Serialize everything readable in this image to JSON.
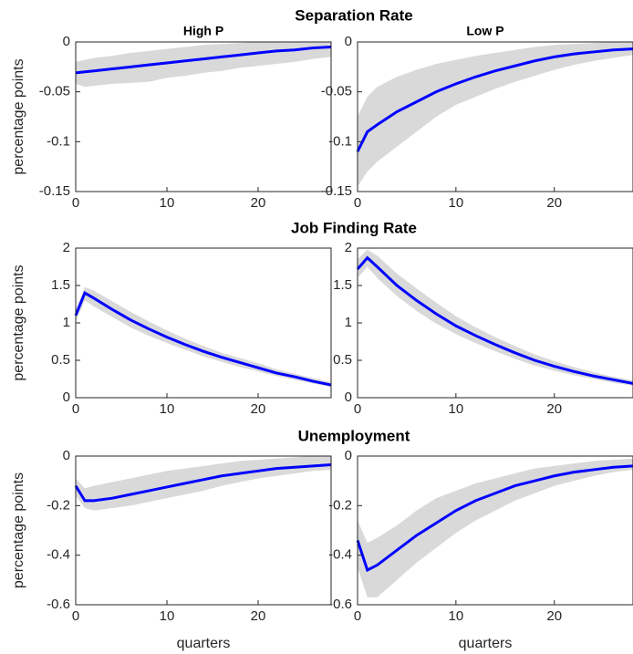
{
  "row_titles": [
    "Separation Rate",
    "Job Finding Rate",
    "Unemployment"
  ],
  "chart_data": [
    {
      "type": "line",
      "title": "High P",
      "ylabel": "percentage points",
      "x": [
        0,
        1,
        2,
        4,
        6,
        8,
        10,
        12,
        14,
        16,
        18,
        20,
        22,
        24,
        26,
        28
      ],
      "xlim": [
        0,
        28
      ],
      "xticks": [
        0,
        10,
        20
      ],
      "ylim": [
        -0.15,
        0
      ],
      "yticks": [
        -0.15,
        -0.1,
        -0.05,
        0
      ],
      "series": [
        {
          "color": "#0000ff",
          "values": [
            -0.031,
            -0.03,
            -0.029,
            -0.027,
            -0.025,
            -0.023,
            -0.021,
            -0.019,
            -0.017,
            -0.015,
            -0.013,
            -0.011,
            -0.009,
            -0.008,
            -0.006,
            -0.005
          ]
        }
      ],
      "band": {
        "color": "#d9d9d9",
        "lower": [
          -0.042,
          -0.045,
          -0.044,
          -0.042,
          -0.041,
          -0.04,
          -0.036,
          -0.034,
          -0.031,
          -0.029,
          -0.026,
          -0.024,
          -0.022,
          -0.02,
          -0.017,
          -0.015
        ],
        "upper": [
          -0.02,
          -0.018,
          -0.016,
          -0.014,
          -0.011,
          -0.009,
          -0.007,
          -0.005,
          -0.003,
          -0.002,
          -0.001,
          0,
          0,
          0,
          0,
          0
        ]
      }
    },
    {
      "type": "line",
      "title": "Low P",
      "x": [
        0,
        1,
        2,
        4,
        6,
        8,
        10,
        12,
        14,
        16,
        18,
        20,
        22,
        24,
        26,
        28
      ],
      "xlim": [
        0,
        28
      ],
      "xticks": [
        0,
        10,
        20
      ],
      "ylim": [
        -0.15,
        0
      ],
      "yticks": [
        -0.15,
        -0.1,
        -0.05,
        0
      ],
      "series": [
        {
          "color": "#0000ff",
          "values": [
            -0.11,
            -0.09,
            -0.083,
            -0.07,
            -0.06,
            -0.05,
            -0.042,
            -0.035,
            -0.029,
            -0.024,
            -0.019,
            -0.015,
            -0.012,
            -0.01,
            -0.008,
            -0.007
          ]
        }
      ],
      "band": {
        "color": "#d9d9d9",
        "lower": [
          -0.145,
          -0.13,
          -0.12,
          -0.105,
          -0.09,
          -0.075,
          -0.063,
          -0.055,
          -0.047,
          -0.04,
          -0.034,
          -0.028,
          -0.023,
          -0.019,
          -0.016,
          -0.013
        ],
        "upper": [
          -0.075,
          -0.055,
          -0.045,
          -0.035,
          -0.028,
          -0.022,
          -0.018,
          -0.014,
          -0.011,
          -0.008,
          -0.005,
          -0.003,
          -0.002,
          -0.001,
          0,
          0
        ]
      }
    },
    {
      "type": "line",
      "ylabel": "percentage points",
      "x": [
        0,
        1,
        2,
        4,
        6,
        8,
        10,
        12,
        14,
        16,
        18,
        20,
        22,
        24,
        26,
        28
      ],
      "xlim": [
        0,
        28
      ],
      "xticks": [
        0,
        10,
        20
      ],
      "ylim": [
        0,
        2
      ],
      "yticks": [
        0,
        0.5,
        1,
        1.5,
        2
      ],
      "series": [
        {
          "color": "#0000ff",
          "values": [
            1.1,
            1.4,
            1.33,
            1.18,
            1.04,
            0.92,
            0.81,
            0.71,
            0.62,
            0.54,
            0.47,
            0.4,
            0.33,
            0.28,
            0.22,
            0.17
          ]
        }
      ],
      "band": {
        "color": "#d9d9d9",
        "lower": [
          1.02,
          1.3,
          1.22,
          1.08,
          0.94,
          0.83,
          0.73,
          0.64,
          0.55,
          0.48,
          0.41,
          0.35,
          0.29,
          0.24,
          0.19,
          0.14
        ],
        "upper": [
          1.18,
          1.48,
          1.43,
          1.29,
          1.15,
          1.02,
          0.9,
          0.79,
          0.69,
          0.6,
          0.53,
          0.46,
          0.38,
          0.32,
          0.26,
          0.21
        ]
      }
    },
    {
      "type": "line",
      "x": [
        0,
        1,
        2,
        4,
        6,
        8,
        10,
        12,
        14,
        16,
        18,
        20,
        22,
        24,
        26,
        28
      ],
      "xlim": [
        0,
        28
      ],
      "xticks": [
        0,
        10,
        20
      ],
      "ylim": [
        0,
        2
      ],
      "yticks": [
        0,
        0.5,
        1,
        1.5,
        2
      ],
      "series": [
        {
          "color": "#0000ff",
          "values": [
            1.72,
            1.87,
            1.75,
            1.5,
            1.3,
            1.12,
            0.96,
            0.83,
            0.71,
            0.6,
            0.5,
            0.42,
            0.35,
            0.29,
            0.24,
            0.19
          ]
        }
      ],
      "band": {
        "color": "#d9d9d9",
        "lower": [
          1.6,
          1.75,
          1.6,
          1.36,
          1.16,
          0.99,
          0.85,
          0.73,
          0.62,
          0.52,
          0.43,
          0.36,
          0.3,
          0.25,
          0.2,
          0.16
        ],
        "upper": [
          1.85,
          1.98,
          1.9,
          1.66,
          1.46,
          1.27,
          1.09,
          0.94,
          0.81,
          0.69,
          0.58,
          0.49,
          0.41,
          0.34,
          0.28,
          0.23
        ]
      }
    },
    {
      "type": "line",
      "ylabel": "percentage points",
      "xlabel": "quarters",
      "x": [
        0,
        1,
        2,
        4,
        6,
        8,
        10,
        12,
        14,
        16,
        18,
        20,
        22,
        24,
        26,
        28
      ],
      "xlim": [
        0,
        28
      ],
      "xticks": [
        0,
        10,
        20
      ],
      "ylim": [
        -0.6,
        0
      ],
      "yticks": [
        -0.6,
        -0.4,
        -0.2,
        0
      ],
      "series": [
        {
          "color": "#0000ff",
          "values": [
            -0.12,
            -0.18,
            -0.18,
            -0.17,
            -0.155,
            -0.14,
            -0.125,
            -0.11,
            -0.095,
            -0.08,
            -0.07,
            -0.06,
            -0.05,
            -0.045,
            -0.04,
            -0.035
          ]
        }
      ],
      "band": {
        "color": "#d9d9d9",
        "lower": [
          -0.16,
          -0.21,
          -0.22,
          -0.21,
          -0.2,
          -0.185,
          -0.17,
          -0.155,
          -0.14,
          -0.12,
          -0.105,
          -0.09,
          -0.08,
          -0.07,
          -0.06,
          -0.055
        ],
        "upper": [
          -0.09,
          -0.13,
          -0.12,
          -0.105,
          -0.09,
          -0.075,
          -0.06,
          -0.05,
          -0.04,
          -0.03,
          -0.02,
          -0.015,
          -0.01,
          -0.005,
          0,
          0
        ]
      }
    },
    {
      "type": "line",
      "xlabel": "quarters",
      "x": [
        0,
        1,
        2,
        4,
        6,
        8,
        10,
        12,
        14,
        16,
        18,
        20,
        22,
        24,
        26,
        28
      ],
      "xlim": [
        0,
        28
      ],
      "xticks": [
        0,
        10,
        20
      ],
      "ylim": [
        -0.6,
        0
      ],
      "yticks": [
        -0.6,
        -0.4,
        -0.2,
        0
      ],
      "series": [
        {
          "color": "#0000ff",
          "values": [
            -0.34,
            -0.46,
            -0.44,
            -0.38,
            -0.32,
            -0.27,
            -0.22,
            -0.18,
            -0.15,
            -0.12,
            -0.1,
            -0.08,
            -0.065,
            -0.055,
            -0.045,
            -0.04
          ]
        }
      ],
      "band": {
        "color": "#d9d9d9",
        "lower": [
          -0.45,
          -0.57,
          -0.57,
          -0.5,
          -0.43,
          -0.37,
          -0.31,
          -0.26,
          -0.22,
          -0.18,
          -0.15,
          -0.12,
          -0.1,
          -0.08,
          -0.065,
          -0.055
        ],
        "upper": [
          -0.26,
          -0.35,
          -0.33,
          -0.28,
          -0.22,
          -0.17,
          -0.14,
          -0.11,
          -0.09,
          -0.07,
          -0.05,
          -0.04,
          -0.03,
          -0.02,
          -0.015,
          -0.01
        ]
      }
    }
  ]
}
